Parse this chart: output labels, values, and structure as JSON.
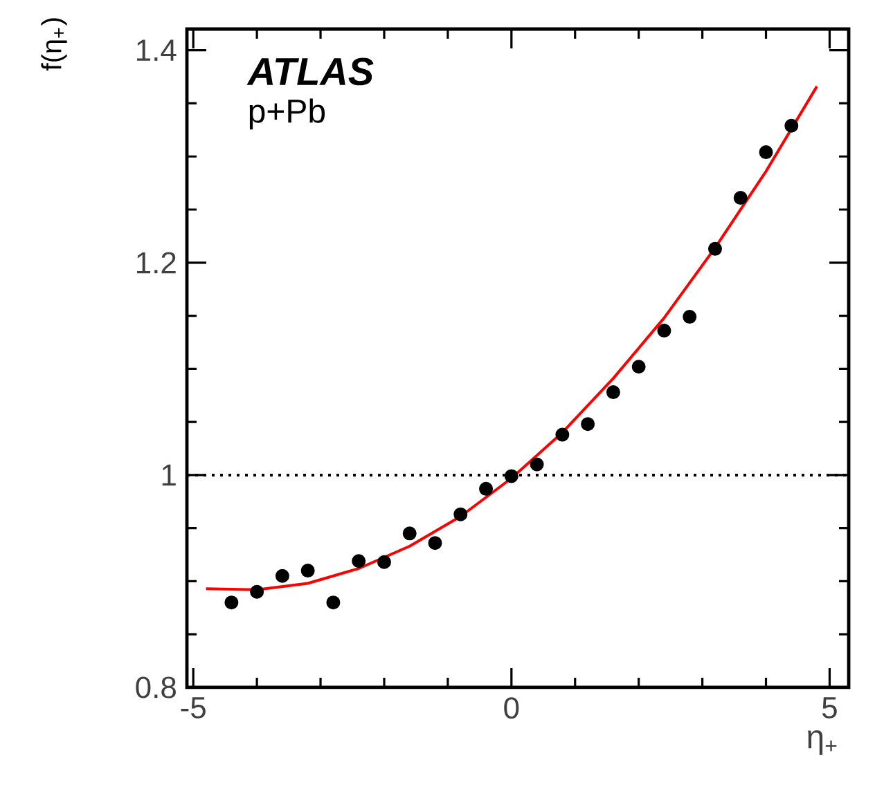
{
  "chart_data": {
    "type": "scatter",
    "xlabel": "η$_{+}$",
    "ylabel": "f(η$_{+}$)",
    "xlim": [
      -5.1,
      5.3
    ],
    "ylim": [
      0.8,
      1.42
    ],
    "xticks": [
      -5,
      0,
      5
    ],
    "yticks": [
      {
        "value": 0.8,
        "label": "0.8"
      },
      {
        "value": 1.0,
        "label": "1"
      },
      {
        "value": 1.2,
        "label": "1.2"
      },
      {
        "value": 1.4,
        "label": "1.4"
      }
    ],
    "grid": false,
    "series": [
      {
        "color": "#000000",
        "x": [
          -4.4,
          -4.0,
          -3.6,
          -3.2,
          -2.8,
          -2.4,
          -2.0,
          -1.6,
          -1.2,
          -0.8,
          -0.4,
          0.0,
          0.4,
          0.8,
          1.2,
          1.6,
          2.0,
          2.4,
          2.8,
          3.2,
          3.6,
          4.0,
          4.4
        ],
        "values": [
          0.88,
          0.89,
          0.905,
          0.91,
          0.88,
          0.919,
          0.918,
          0.945,
          0.936,
          0.963,
          0.987,
          0.999,
          1.01,
          1.038,
          1.048,
          1.078,
          1.102,
          1.136,
          1.149,
          1.213,
          1.261,
          1.304,
          1.329
        ]
      },
      {
        "type": "line",
        "color": "#ff0000",
        "line_style": "solid",
        "x": [
          -4.8,
          -4.0,
          -3.2,
          -2.4,
          -1.6,
          -0.8,
          0.0,
          0.8,
          1.6,
          2.4,
          3.2,
          4.0,
          4.8
        ],
        "values": [
          0.893,
          0.892,
          0.898,
          0.912,
          0.933,
          0.961,
          0.997,
          1.04,
          1.091,
          1.148,
          1.214,
          1.286,
          1.366
        ]
      }
    ],
    "ref_lines": [
      {
        "axis": "y",
        "value": 1.0,
        "line_style": "dotted",
        "color": "#000000"
      }
    ],
    "annotations": [
      "**ATLAS**",
      "p+Pb"
    ]
  }
}
